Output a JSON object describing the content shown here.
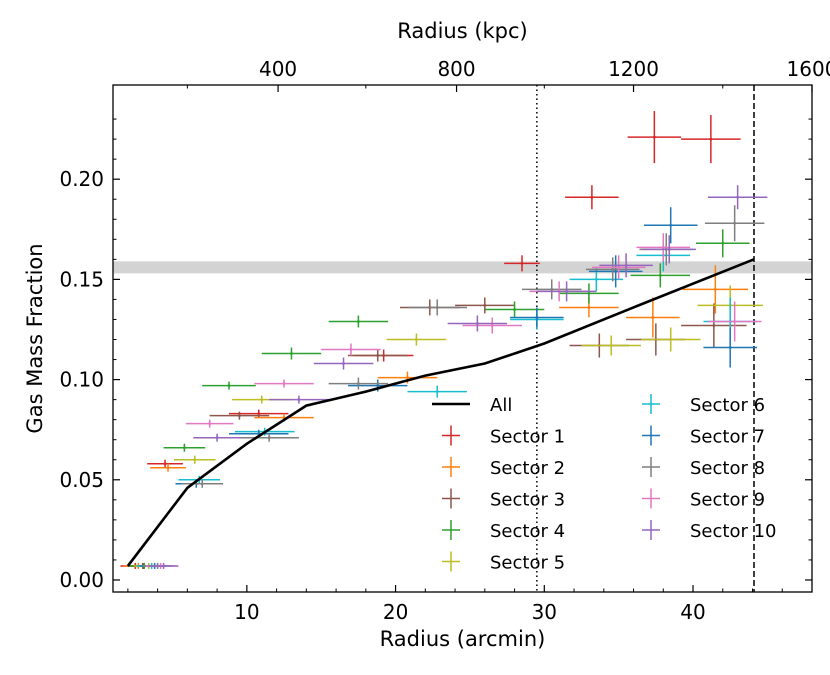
{
  "chart_data": {
    "type": "scatter",
    "xlabel": "Radius (arcmin)",
    "ylabel": "Gas Mass Fraction",
    "top_xlabel": "Radius (kpc)",
    "xlim": [
      1,
      48
    ],
    "ylim": [
      -0.006,
      0.247
    ],
    "x_ticks": [
      10,
      20,
      30,
      40
    ],
    "y_ticks": [
      0.0,
      0.05,
      0.1,
      0.15,
      0.2
    ],
    "y_tick_labels": [
      "0.00",
      "0.05",
      "0.10",
      "0.15",
      "0.20"
    ],
    "top_ticks": [
      {
        "label": "400",
        "x": 12.1
      },
      {
        "label": "800",
        "x": 24.1
      },
      {
        "label": "1200",
        "x": 36.0
      },
      {
        "label": "1600",
        "x": 48.0
      }
    ],
    "reference_band": {
      "y_low": 0.153,
      "y_high": 0.159
    },
    "reference_lines": [
      {
        "x": 29.5,
        "style": "dotted"
      },
      {
        "x": 44.1,
        "style": "dashed"
      }
    ],
    "all_profile": {
      "name": "All",
      "color": "#000000",
      "x": [
        2.0,
        6.0,
        10.0,
        14.0,
        18.0,
        22.0,
        26.0,
        30.0,
        36.0,
        44.1
      ],
      "y": [
        0.007,
        0.046,
        0.068,
        0.087,
        0.094,
        0.102,
        0.108,
        0.118,
        0.136,
        0.16
      ]
    },
    "series": [
      {
        "name": "Sector 1",
        "color": "#d62728",
        "points": [
          {
            "x": 2.5,
            "y": 0.007,
            "xerr": 1.0,
            "yerr": 0.0015
          },
          {
            "x": 4.5,
            "y": 0.058,
            "xerr": 1.2,
            "yerr": 0.002
          },
          {
            "x": 10.8,
            "y": 0.083,
            "xerr": 2.0,
            "yerr": 0.002
          },
          {
            "x": 19.2,
            "y": 0.112,
            "xerr": 2.0,
            "yerr": 0.003
          },
          {
            "x": 28.5,
            "y": 0.158,
            "xerr": 1.2,
            "yerr": 0.004
          },
          {
            "x": 33.2,
            "y": 0.191,
            "xerr": 1.8,
            "yerr": 0.006
          },
          {
            "x": 37.4,
            "y": 0.221,
            "xerr": 1.8,
            "yerr": 0.013
          },
          {
            "x": 41.2,
            "y": 0.22,
            "xerr": 2.0,
            "yerr": 0.012
          }
        ]
      },
      {
        "name": "Sector 2",
        "color": "#ff7f0e",
        "points": [
          {
            "x": 2.7,
            "y": 0.007,
            "xerr": 1.0,
            "yerr": 0.0015
          },
          {
            "x": 4.7,
            "y": 0.056,
            "xerr": 1.2,
            "yerr": 0.002
          },
          {
            "x": 12.5,
            "y": 0.081,
            "xerr": 2.0,
            "yerr": 0.002
          },
          {
            "x": 20.8,
            "y": 0.101,
            "xerr": 2.0,
            "yerr": 0.003
          },
          {
            "x": 33.0,
            "y": 0.136,
            "xerr": 2.0,
            "yerr": 0.005
          },
          {
            "x": 37.3,
            "y": 0.131,
            "xerr": 1.8,
            "yerr": 0.01
          },
          {
            "x": 41.5,
            "y": 0.145,
            "xerr": 2.2,
            "yerr": 0.012
          }
        ]
      },
      {
        "name": "Sector 3",
        "color": "#8c564b",
        "points": [
          {
            "x": 3.0,
            "y": 0.007,
            "xerr": 1.0,
            "yerr": 0.0015
          },
          {
            "x": 9.5,
            "y": 0.082,
            "xerr": 2.0,
            "yerr": 0.002
          },
          {
            "x": 18.8,
            "y": 0.112,
            "xerr": 2.0,
            "yerr": 0.003
          },
          {
            "x": 22.3,
            "y": 0.136,
            "xerr": 2.0,
            "yerr": 0.004
          },
          {
            "x": 26.0,
            "y": 0.137,
            "xerr": 2.0,
            "yerr": 0.004
          },
          {
            "x": 33.7,
            "y": 0.117,
            "xerr": 2.0,
            "yerr": 0.006
          },
          {
            "x": 37.5,
            "y": 0.12,
            "xerr": 2.0,
            "yerr": 0.008
          },
          {
            "x": 41.4,
            "y": 0.127,
            "xerr": 2.2,
            "yerr": 0.011
          }
        ]
      },
      {
        "name": "Sector 4",
        "color": "#2ca02c",
        "points": [
          {
            "x": 3.1,
            "y": 0.007,
            "xerr": 1.0,
            "yerr": 0.0015
          },
          {
            "x": 5.8,
            "y": 0.066,
            "xerr": 1.4,
            "yerr": 0.002
          },
          {
            "x": 8.8,
            "y": 0.097,
            "xerr": 1.8,
            "yerr": 0.002
          },
          {
            "x": 13.0,
            "y": 0.113,
            "xerr": 2.0,
            "yerr": 0.003
          },
          {
            "x": 17.5,
            "y": 0.129,
            "xerr": 2.0,
            "yerr": 0.003
          },
          {
            "x": 28.0,
            "y": 0.135,
            "xerr": 2.0,
            "yerr": 0.004
          },
          {
            "x": 33.0,
            "y": 0.143,
            "xerr": 2.0,
            "yerr": 0.005
          },
          {
            "x": 37.8,
            "y": 0.152,
            "xerr": 2.0,
            "yerr": 0.006
          },
          {
            "x": 42.0,
            "y": 0.168,
            "xerr": 1.8,
            "yerr": 0.007
          }
        ]
      },
      {
        "name": "Sector 5",
        "color": "#bcbd22",
        "points": [
          {
            "x": 3.4,
            "y": 0.007,
            "xerr": 1.0,
            "yerr": 0.0015
          },
          {
            "x": 6.5,
            "y": 0.06,
            "xerr": 1.4,
            "yerr": 0.002
          },
          {
            "x": 11.0,
            "y": 0.09,
            "xerr": 2.0,
            "yerr": 0.002
          },
          {
            "x": 21.4,
            "y": 0.12,
            "xerr": 2.0,
            "yerr": 0.003
          },
          {
            "x": 34.5,
            "y": 0.117,
            "xerr": 2.0,
            "yerr": 0.005
          },
          {
            "x": 38.5,
            "y": 0.12,
            "xerr": 2.0,
            "yerr": 0.006
          },
          {
            "x": 42.5,
            "y": 0.137,
            "xerr": 2.2,
            "yerr": 0.01
          }
        ]
      },
      {
        "name": "Sector 6",
        "color": "#17becf",
        "points": [
          {
            "x": 3.6,
            "y": 0.007,
            "xerr": 1.0,
            "yerr": 0.0015
          },
          {
            "x": 6.8,
            "y": 0.05,
            "xerr": 1.4,
            "yerr": 0.002
          },
          {
            "x": 11.2,
            "y": 0.074,
            "xerr": 2.0,
            "yerr": 0.002
          },
          {
            "x": 22.8,
            "y": 0.094,
            "xerr": 2.0,
            "yerr": 0.003
          },
          {
            "x": 29.5,
            "y": 0.13,
            "xerr": 1.8,
            "yerr": 0.005
          },
          {
            "x": 33.5,
            "y": 0.15,
            "xerr": 1.8,
            "yerr": 0.006
          },
          {
            "x": 38.0,
            "y": 0.162,
            "xerr": 1.8,
            "yerr": 0.008
          },
          {
            "x": 42.5,
            "y": 0.129,
            "xerr": 1.8,
            "yerr": 0.012
          }
        ]
      },
      {
        "name": "Sector 7",
        "color": "#1f77b4",
        "points": [
          {
            "x": 3.8,
            "y": 0.007,
            "xerr": 1.0,
            "yerr": 0.0015
          },
          {
            "x": 6.6,
            "y": 0.048,
            "xerr": 1.4,
            "yerr": 0.002
          },
          {
            "x": 10.8,
            "y": 0.073,
            "xerr": 2.0,
            "yerr": 0.002
          },
          {
            "x": 18.8,
            "y": 0.097,
            "xerr": 2.0,
            "yerr": 0.003
          },
          {
            "x": 29.5,
            "y": 0.131,
            "xerr": 1.8,
            "yerr": 0.005
          },
          {
            "x": 34.8,
            "y": 0.154,
            "xerr": 1.8,
            "yerr": 0.008
          },
          {
            "x": 38.5,
            "y": 0.177,
            "xerr": 1.8,
            "yerr": 0.009
          },
          {
            "x": 42.5,
            "y": 0.116,
            "xerr": 1.8,
            "yerr": 0.01
          }
        ]
      },
      {
        "name": "Sector 8",
        "color": "#7f7f7f",
        "points": [
          {
            "x": 4.0,
            "y": 0.007,
            "xerr": 1.0,
            "yerr": 0.0015
          },
          {
            "x": 7.0,
            "y": 0.048,
            "xerr": 1.4,
            "yerr": 0.002
          },
          {
            "x": 11.5,
            "y": 0.071,
            "xerr": 2.0,
            "yerr": 0.002
          },
          {
            "x": 17.5,
            "y": 0.098,
            "xerr": 2.0,
            "yerr": 0.003
          },
          {
            "x": 22.8,
            "y": 0.136,
            "xerr": 2.0,
            "yerr": 0.004
          },
          {
            "x": 30.5,
            "y": 0.145,
            "xerr": 2.0,
            "yerr": 0.005
          },
          {
            "x": 34.6,
            "y": 0.155,
            "xerr": 1.8,
            "yerr": 0.006
          },
          {
            "x": 38.2,
            "y": 0.165,
            "xerr": 1.8,
            "yerr": 0.008
          },
          {
            "x": 42.8,
            "y": 0.178,
            "xerr": 2.0,
            "yerr": 0.009
          }
        ]
      },
      {
        "name": "Sector 9",
        "color": "#e377c2",
        "points": [
          {
            "x": 4.2,
            "y": 0.007,
            "xerr": 1.0,
            "yerr": 0.0015
          },
          {
            "x": 7.5,
            "y": 0.078,
            "xerr": 1.6,
            "yerr": 0.002
          },
          {
            "x": 12.5,
            "y": 0.098,
            "xerr": 2.0,
            "yerr": 0.002
          },
          {
            "x": 17.0,
            "y": 0.115,
            "xerr": 2.0,
            "yerr": 0.003
          },
          {
            "x": 26.5,
            "y": 0.127,
            "xerr": 2.0,
            "yerr": 0.004
          },
          {
            "x": 31.0,
            "y": 0.144,
            "xerr": 2.0,
            "yerr": 0.005
          },
          {
            "x": 35.0,
            "y": 0.156,
            "xerr": 1.8,
            "yerr": 0.006
          },
          {
            "x": 38.0,
            "y": 0.166,
            "xerr": 1.8,
            "yerr": 0.007
          },
          {
            "x": 42.8,
            "y": 0.129,
            "xerr": 1.8,
            "yerr": 0.01
          }
        ]
      },
      {
        "name": "Sector 10",
        "color": "#9467bd",
        "points": [
          {
            "x": 4.4,
            "y": 0.007,
            "xerr": 1.0,
            "yerr": 0.0015
          },
          {
            "x": 8.0,
            "y": 0.071,
            "xerr": 1.6,
            "yerr": 0.002
          },
          {
            "x": 13.5,
            "y": 0.09,
            "xerr": 2.0,
            "yerr": 0.002
          },
          {
            "x": 16.5,
            "y": 0.108,
            "xerr": 2.0,
            "yerr": 0.003
          },
          {
            "x": 25.5,
            "y": 0.128,
            "xerr": 2.0,
            "yerr": 0.004
          },
          {
            "x": 31.5,
            "y": 0.144,
            "xerr": 2.0,
            "yerr": 0.005
          },
          {
            "x": 35.5,
            "y": 0.157,
            "xerr": 1.8,
            "yerr": 0.006
          },
          {
            "x": 38.4,
            "y": 0.165,
            "xerr": 1.8,
            "yerr": 0.007
          },
          {
            "x": 43.0,
            "y": 0.191,
            "xerr": 2.0,
            "yerr": 0.006
          }
        ]
      }
    ]
  }
}
